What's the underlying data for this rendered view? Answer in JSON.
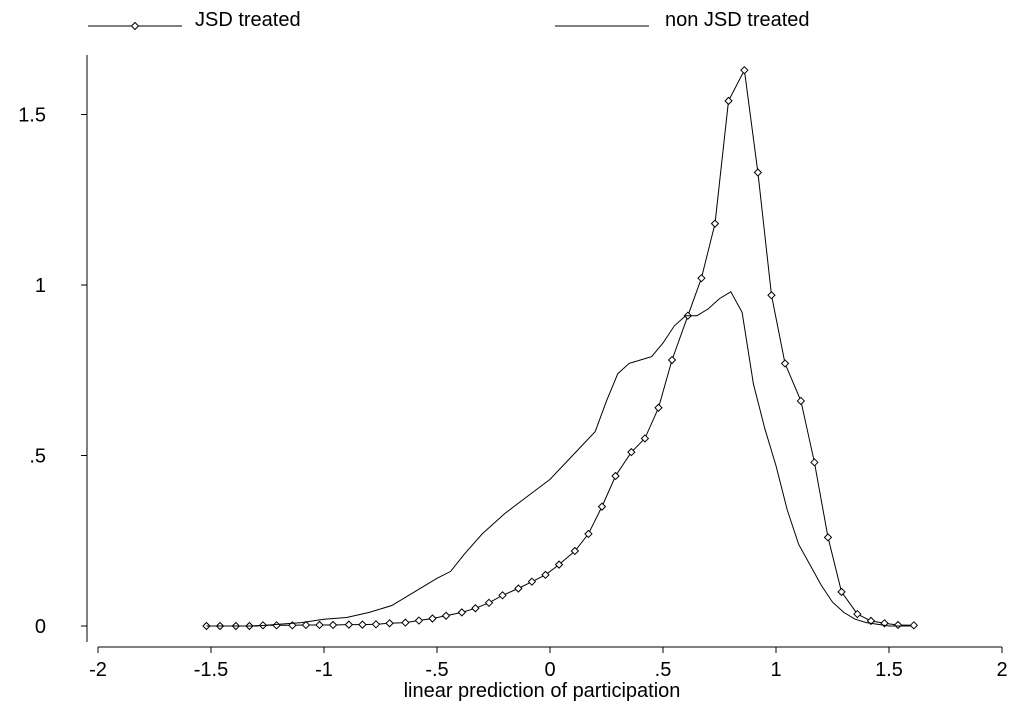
{
  "chart_data": {
    "type": "line",
    "title": "",
    "xlabel": "linear prediction of participation",
    "ylabel": "",
    "xlim": [
      -2,
      2
    ],
    "ylim": [
      0,
      1.65
    ],
    "x_ticks": [
      {
        "value": -2,
        "label": "-2"
      },
      {
        "value": -1.5,
        "label": "-1.5"
      },
      {
        "value": -1,
        "label": "-1"
      },
      {
        "value": -0.5,
        "label": "-.5"
      },
      {
        "value": 0,
        "label": "0"
      },
      {
        "value": 0.5,
        "label": ".5"
      },
      {
        "value": 1,
        "label": "1"
      },
      {
        "value": 1.5,
        "label": "1.5"
      },
      {
        "value": 2,
        "label": "2"
      }
    ],
    "y_ticks": [
      {
        "value": 0,
        "label": "0"
      },
      {
        "value": 0.5,
        "label": ".5"
      },
      {
        "value": 1,
        "label": "1"
      },
      {
        "value": 1.5,
        "label": "1.5"
      }
    ],
    "grid": false,
    "legend": {
      "placement": "top",
      "entries": [
        "JSD treated",
        "non JSD treated"
      ]
    },
    "series": [
      {
        "name": "JSD treated",
        "marker": "diamond",
        "x": [
          -1.52,
          -1.46,
          -1.39,
          -1.33,
          -1.27,
          -1.21,
          -1.14,
          -1.08,
          -1.02,
          -0.96,
          -0.89,
          -0.83,
          -0.77,
          -0.71,
          -0.64,
          -0.58,
          -0.52,
          -0.46,
          -0.39,
          -0.33,
          -0.27,
          -0.21,
          -0.14,
          -0.08,
          -0.02,
          0.04,
          0.11,
          0.17,
          0.23,
          0.29,
          0.36,
          0.42,
          0.48,
          0.54,
          0.61,
          0.67,
          0.73,
          0.79,
          0.86,
          0.92,
          0.98,
          1.04,
          1.11,
          1.17,
          1.23,
          1.29,
          1.36,
          1.42,
          1.48,
          1.54,
          1.61
        ],
        "y": [
          0.0,
          0.0,
          0.0,
          0.0,
          0.002,
          0.002,
          0.002,
          0.003,
          0.003,
          0.003,
          0.004,
          0.004,
          0.005,
          0.008,
          0.01,
          0.016,
          0.022,
          0.03,
          0.04,
          0.052,
          0.068,
          0.09,
          0.11,
          0.13,
          0.15,
          0.18,
          0.22,
          0.27,
          0.35,
          0.44,
          0.51,
          0.55,
          0.64,
          0.78,
          0.91,
          1.02,
          1.18,
          1.54,
          1.63,
          1.33,
          0.97,
          0.77,
          0.66,
          0.48,
          0.26,
          0.1,
          0.035,
          0.015,
          0.008,
          0.003,
          0.002
        ]
      },
      {
        "name": "non JSD treated",
        "marker": "none",
        "x": [
          -1.52,
          -1.4,
          -1.3,
          -1.2,
          -1.1,
          -1.0,
          -0.9,
          -0.8,
          -0.7,
          -0.6,
          -0.5,
          -0.44,
          -0.38,
          -0.3,
          -0.2,
          -0.1,
          0.0,
          0.1,
          0.2,
          0.25,
          0.3,
          0.35,
          0.4,
          0.45,
          0.5,
          0.55,
          0.6,
          0.65,
          0.7,
          0.75,
          0.8,
          0.85,
          0.9,
          0.95,
          1.0,
          1.05,
          1.1,
          1.15,
          1.2,
          1.25,
          1.3,
          1.35,
          1.4,
          1.5,
          1.6
        ],
        "y": [
          0.0,
          0.0,
          0.0,
          0.005,
          0.01,
          0.02,
          0.025,
          0.04,
          0.06,
          0.1,
          0.14,
          0.16,
          0.21,
          0.27,
          0.33,
          0.38,
          0.43,
          0.5,
          0.57,
          0.66,
          0.74,
          0.77,
          0.78,
          0.79,
          0.83,
          0.88,
          0.91,
          0.91,
          0.93,
          0.96,
          0.98,
          0.92,
          0.71,
          0.58,
          0.47,
          0.34,
          0.24,
          0.18,
          0.12,
          0.07,
          0.04,
          0.02,
          0.01,
          0.0,
          0.0
        ]
      }
    ]
  }
}
